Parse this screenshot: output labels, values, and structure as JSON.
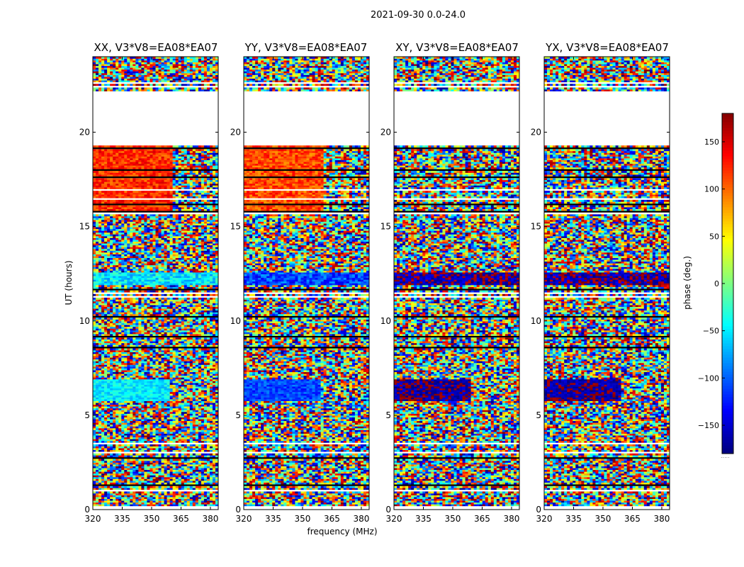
{
  "figure_title": "2021-09-30 0.0-24.0",
  "colorbar_extra": ".....",
  "chart_data": {
    "type": "heatmap",
    "x_label": "frequency (MHz)",
    "y_label": "UT (hours)",
    "x_ticks": [
      320,
      335,
      350,
      365,
      380
    ],
    "x_tick_labels": [
      "320",
      "335",
      "350",
      "365",
      "380"
    ],
    "xlim": [
      320,
      384
    ],
    "y_ticks": [
      0,
      5,
      10,
      15,
      20
    ],
    "y_tick_labels": [
      "0",
      "5",
      "10",
      "15",
      "20"
    ],
    "ylim": [
      0,
      24
    ],
    "colorbar": {
      "label": "phase (deg.)",
      "range": [
        -180,
        180
      ],
      "ticks": [
        -150,
        -100,
        -50,
        0,
        50,
        100,
        150
      ],
      "tick_labels": [
        "−150",
        "−100",
        "−50",
        "0",
        "50",
        "100",
        "150"
      ],
      "colormap": "jet"
    },
    "no_data_band_hours": [
      19.3,
      22.2
    ],
    "panels": [
      {
        "name": "XX",
        "title": "XX, V3*V8=EA08*EA07",
        "coherent_evening_phase_deg": 120,
        "coherent_morning_phase_deg": -50
      },
      {
        "name": "YY",
        "title": "YY, V3*V8=EA08*EA07",
        "coherent_evening_phase_deg": 110,
        "coherent_morning_phase_deg": -110
      },
      {
        "name": "XY",
        "title": "XY, V3*V8=EA08*EA07",
        "coherent_evening_phase_deg": null,
        "coherent_morning_phase_deg": -170
      },
      {
        "name": "YX",
        "title": "YX, V3*V8=EA08*EA07",
        "coherent_evening_phase_deg": null,
        "coherent_morning_phase_deg": -170
      }
    ]
  }
}
